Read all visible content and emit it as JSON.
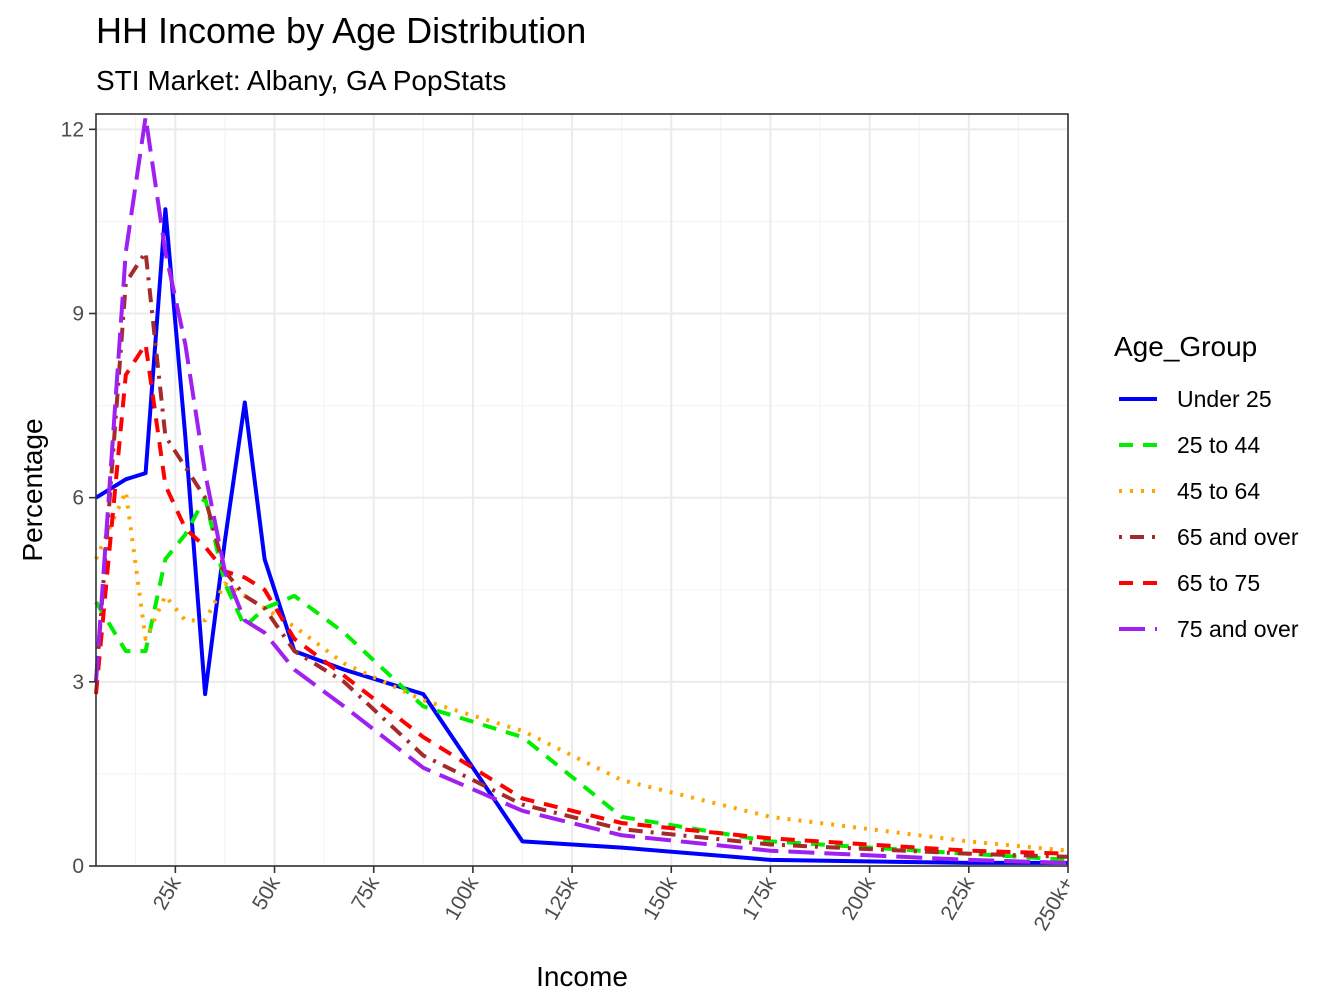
{
  "chart_data": {
    "type": "line",
    "title": "HH Income by Age Distribution",
    "subtitle": "STI Market: Albany, GA PopStats",
    "xlabel": "Income",
    "ylabel": "Percentage",
    "xlim": [
      5,
      250
    ],
    "ylim": [
      0,
      12.25
    ],
    "x_ticks": [
      25,
      50,
      75,
      100,
      125,
      150,
      175,
      200,
      225,
      250
    ],
    "x_tick_labels": [
      "25k",
      "50k",
      "75k",
      "100k",
      "125k",
      "150k",
      "175k",
      "200k",
      "225k",
      "250k+"
    ],
    "y_ticks": [
      0,
      3,
      6,
      9,
      12
    ],
    "y_tick_labels": [
      "0",
      "3",
      "6",
      "9",
      "12"
    ],
    "grid": true,
    "legend_title": "Age_Group",
    "legend_position": "right",
    "x": [
      5,
      12.5,
      17.5,
      22.5,
      27.5,
      32.5,
      37.5,
      42.5,
      47.5,
      55,
      67.5,
      87.5,
      112.5,
      137.5,
      175,
      225,
      250
    ],
    "series": [
      {
        "name": "Under 25",
        "color": "#0000ff",
        "dash": "solid",
        "values": [
          6.0,
          6.3,
          6.4,
          10.7,
          7.0,
          2.8,
          5.3,
          7.55,
          5.0,
          3.5,
          3.2,
          2.8,
          0.4,
          0.3,
          0.1,
          0.05,
          0.05
        ]
      },
      {
        "name": "25 to 44",
        "color": "#00ee00",
        "dash": "dashed",
        "values": [
          4.3,
          3.5,
          3.5,
          5.0,
          5.4,
          6.0,
          4.6,
          3.9,
          4.2,
          4.4,
          3.8,
          2.6,
          2.1,
          0.8,
          0.4,
          0.2,
          0.1
        ]
      },
      {
        "name": "45 to 64",
        "color": "#ffa500",
        "dash": "dotted",
        "values": [
          5.0,
          6.1,
          3.7,
          4.4,
          4.0,
          4.0,
          4.6,
          4.4,
          4.2,
          3.9,
          3.3,
          2.7,
          2.2,
          1.4,
          0.8,
          0.4,
          0.25
        ]
      },
      {
        "name": "65 and over",
        "color": "#a52a2a",
        "dash": "dotdash",
        "values": [
          3.0,
          9.5,
          10.0,
          7.0,
          6.5,
          6.0,
          4.8,
          4.4,
          4.2,
          3.5,
          3.0,
          1.8,
          1.0,
          0.6,
          0.35,
          0.2,
          0.15
        ]
      },
      {
        "name": "65 to 75",
        "color": "#ff0000",
        "dash": "dashed",
        "values": [
          2.8,
          8.0,
          8.5,
          6.2,
          5.5,
          5.2,
          4.8,
          4.7,
          4.5,
          3.7,
          3.1,
          2.1,
          1.1,
          0.7,
          0.45,
          0.25,
          0.2
        ]
      },
      {
        "name": "75 and over",
        "color": "#a020f0",
        "dash": "longdash",
        "values": [
          3.0,
          10.0,
          12.2,
          10.0,
          8.5,
          6.4,
          4.8,
          4.0,
          3.8,
          3.2,
          2.6,
          1.6,
          0.9,
          0.5,
          0.25,
          0.1,
          0.05
        ]
      }
    ]
  }
}
